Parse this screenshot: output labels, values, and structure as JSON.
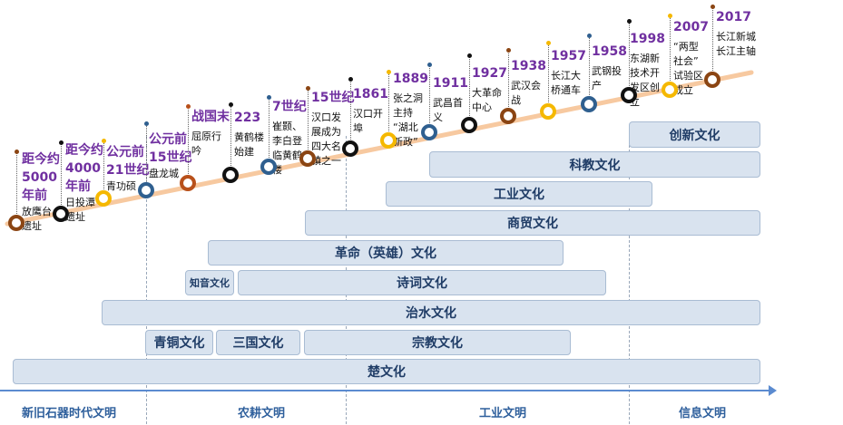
{
  "colors": {
    "path": "#f7c9a0",
    "year": "#7030a0",
    "bar_fill": "#d9e3ef",
    "bar_border": "#a9bcd3",
    "bar_text": "#1f3c66",
    "axis": "#5b8bd0",
    "era": "#2e5f9c"
  },
  "eras": [
    "新旧石器时代文明",
    "农耕文明",
    "工业文明",
    "信息文明"
  ],
  "bars": [
    {
      "label": "创新文化"
    },
    {
      "label": "科教文化"
    },
    {
      "label": "工业文化"
    },
    {
      "label": "商贸文化"
    },
    {
      "label": "革命（英雄）文化"
    },
    {
      "label": "知音文化"
    },
    {
      "label": "诗词文化"
    },
    {
      "label": "治水文化"
    },
    {
      "label": "青铜文化"
    },
    {
      "label": "三国文化"
    },
    {
      "label": "宗教文化"
    },
    {
      "label": "楚文化"
    }
  ],
  "events": [
    {
      "year": "距今约\n5000\n年前",
      "desc": "放鹰台\n遗址",
      "color": "#8b4513"
    },
    {
      "year": "距今约\n4000\n年前",
      "desc": "日投潭\n遗址",
      "color": "#111111"
    },
    {
      "year": "公元前\n21世纪",
      "desc": "青功硕",
      "color": "#f5b800"
    },
    {
      "year": "公元前\n15世纪",
      "desc": "盘龙城",
      "color": "#2f5f8f"
    },
    {
      "year": "战国末",
      "desc": "屈原行\n吟",
      "color": "#b8501a"
    },
    {
      "year": "223",
      "desc": "黄鹤楼\n始建",
      "color": "#111111"
    },
    {
      "year": "7世纪",
      "desc": "崔颢、\n李白登\n临黄鹤\n楼",
      "color": "#2f5f8f"
    },
    {
      "year": "15世纪",
      "desc": "汉口发\n展成为\n四大名\n镇之一",
      "color": "#8b4513"
    },
    {
      "year": "1861",
      "desc": "汉口开\n埠",
      "color": "#111111"
    },
    {
      "year": "1889",
      "desc": "张之洞\n主持\n“湖北\n新政”",
      "color": "#f5b800"
    },
    {
      "year": "1911",
      "desc": "武昌首\n义",
      "color": "#2f5f8f"
    },
    {
      "year": "1927",
      "desc": "大革命\n中心",
      "color": "#111111"
    },
    {
      "year": "1938",
      "desc": "武汉会\n战",
      "color": "#8b4513"
    },
    {
      "year": "1957",
      "desc": "长江大\n桥通车",
      "color": "#f5b800"
    },
    {
      "year": "1958",
      "desc": "武钢投\n产",
      "color": "#2f5f8f"
    },
    {
      "year": "1998",
      "desc": "东湖新\n技术开\n发区创\n立",
      "color": "#111111"
    },
    {
      "year": "2007",
      "desc": "“两型\n社会”\n试验区\n成立",
      "color": "#f5b800"
    },
    {
      "year": "2017",
      "desc": "长江新城\n长江主轴",
      "color": "#8b4513"
    }
  ]
}
